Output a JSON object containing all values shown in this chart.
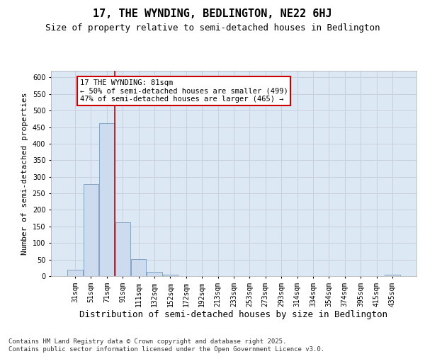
{
  "title1": "17, THE WYNDING, BEDLINGTON, NE22 6HJ",
  "title2": "Size of property relative to semi-detached houses in Bedlington",
  "xlabel": "Distribution of semi-detached houses by size in Bedlington",
  "ylabel": "Number of semi-detached properties",
  "categories": [
    "31sqm",
    "51sqm",
    "71sqm",
    "91sqm",
    "111sqm",
    "132sqm",
    "152sqm",
    "172sqm",
    "192sqm",
    "213sqm",
    "233sqm",
    "253sqm",
    "273sqm",
    "293sqm",
    "314sqm",
    "334sqm",
    "354sqm",
    "374sqm",
    "395sqm",
    "415sqm",
    "435sqm"
  ],
  "values": [
    20,
    278,
    462,
    162,
    52,
    12,
    5,
    0,
    0,
    0,
    0,
    0,
    0,
    0,
    0,
    0,
    0,
    0,
    0,
    0,
    5
  ],
  "bar_color": "#ccdcee",
  "bar_edge_color": "#7799bb",
  "grid_color": "#c8d0e0",
  "background_color": "#dde8f5",
  "vline_x": 2.5,
  "vline_color": "#cc0000",
  "annotation_text": "17 THE WYNDING: 81sqm\n← 50% of semi-detached houses are smaller (499)\n47% of semi-detached houses are larger (465) →",
  "annotation_box_facecolor": "#ffffff",
  "annotation_box_edgecolor": "#cc0000",
  "ylim": [
    0,
    620
  ],
  "yticks": [
    0,
    50,
    100,
    150,
    200,
    250,
    300,
    350,
    400,
    450,
    500,
    550,
    600
  ],
  "footnote": "Contains HM Land Registry data © Crown copyright and database right 2025.\nContains public sector information licensed under the Open Government Licence v3.0.",
  "title1_fontsize": 11,
  "title2_fontsize": 9,
  "xlabel_fontsize": 9,
  "ylabel_fontsize": 8,
  "tick_fontsize": 7,
  "annotation_fontsize": 7.5,
  "footnote_fontsize": 6.5
}
